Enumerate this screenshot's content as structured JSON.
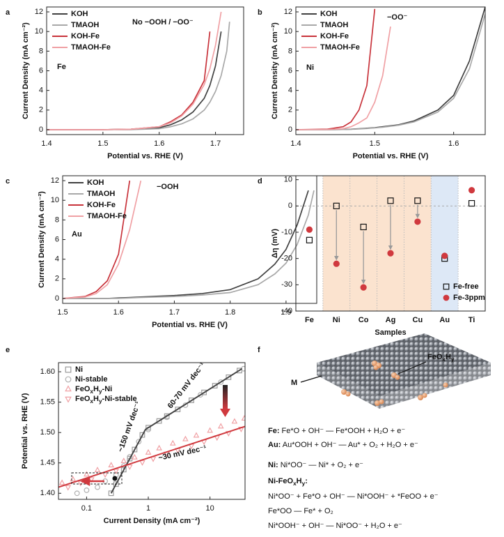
{
  "chart_data": [
    {
      "panel": "a",
      "type": "line",
      "x": [
        1.4,
        1.5,
        1.55,
        1.6,
        1.62,
        1.64,
        1.66,
        1.68,
        1.69,
        1.7,
        1.71,
        1.72,
        1.725
      ],
      "series": [
        {
          "name": "KOH",
          "color": "#404040",
          "values": [
            0,
            0,
            0.05,
            0.2,
            0.5,
            1.0,
            1.8,
            3.2,
            4.5,
            6.5,
            10,
            null,
            null
          ]
        },
        {
          "name": "TMAOH",
          "color": "#a8a8a8",
          "values": [
            0,
            0,
            0,
            0.1,
            0.3,
            0.6,
            1.1,
            2.0,
            2.8,
            3.9,
            5.5,
            8.0,
            11
          ]
        },
        {
          "name": "KOH-Fe",
          "color": "#c8323a",
          "values": [
            0,
            0,
            0.05,
            0.3,
            0.8,
            1.5,
            2.8,
            5.0,
            10.0,
            null,
            null,
            null,
            null
          ]
        },
        {
          "name": "TMAOH-Fe",
          "color": "#f0a0a4",
          "values": [
            0,
            0,
            0.05,
            0.3,
            0.7,
            1.4,
            2.6,
            4.6,
            6.2,
            8.6,
            12,
            null,
            null
          ]
        }
      ],
      "xlim": [
        1.4,
        1.75
      ],
      "ylim": [
        -0.5,
        12.5
      ],
      "xticks": [
        1.4,
        1.5,
        1.6,
        1.7
      ],
      "yticks": [
        0,
        2,
        4,
        6,
        8,
        10,
        12
      ],
      "xlabel": "Potential vs. RHE (V)",
      "ylabel": "Current Density (mA cm⁻²)",
      "legend": "upper left",
      "annotations": [
        "No −OOH / −OO⁻",
        "Fe"
      ]
    },
    {
      "panel": "b",
      "type": "line",
      "x": [
        1.4,
        1.44,
        1.46,
        1.47,
        1.48,
        1.49,
        1.5,
        1.51,
        1.52,
        1.53,
        1.55,
        1.58,
        1.6,
        1.62,
        1.64
      ],
      "series": [
        {
          "name": "KOH",
          "color": "#404040",
          "values": [
            0,
            0,
            0.02,
            0.05,
            0.1,
            0.15,
            0.2,
            0.3,
            0.4,
            0.5,
            0.9,
            2.0,
            3.5,
            7.0,
            12.5
          ]
        },
        {
          "name": "TMAOH",
          "color": "#a8a8a8",
          "values": [
            0,
            0,
            0.02,
            0.04,
            0.08,
            0.12,
            0.18,
            0.25,
            0.35,
            0.45,
            0.8,
            1.8,
            3.2,
            6.2,
            11.8
          ]
        },
        {
          "name": "KOH-Fe",
          "color": "#c8323a",
          "values": [
            0,
            0.05,
            0.3,
            0.8,
            2.0,
            4.5,
            12.3,
            null,
            null,
            null,
            null,
            null,
            null,
            null,
            null
          ]
        },
        {
          "name": "TMAOH-Fe",
          "color": "#f0a0a4",
          "values": [
            0,
            0.02,
            0.1,
            0.3,
            0.7,
            1.2,
            2.8,
            5.5,
            10.5,
            null,
            null,
            null,
            null,
            null,
            null
          ]
        }
      ],
      "xlim": [
        1.4,
        1.64
      ],
      "ylim": [
        -0.5,
        12.5
      ],
      "xticks": [
        1.4,
        1.5,
        1.6
      ],
      "yticks": [
        0,
        2,
        4,
        6,
        8,
        10,
        12
      ],
      "xlabel": "Potential vs. RHE (V)",
      "ylabel": "Current Density (mA cm⁻²)",
      "legend": "upper left",
      "annotations": [
        "−OO⁻",
        "Ni"
      ]
    },
    {
      "panel": "c",
      "type": "line",
      "x": [
        1.5,
        1.54,
        1.56,
        1.58,
        1.6,
        1.62,
        1.64,
        1.7,
        1.75,
        1.8,
        1.85,
        1.88,
        1.9,
        1.92,
        1.94,
        1.95
      ],
      "series": [
        {
          "name": "KOH",
          "color": "#404040",
          "values": [
            0,
            0,
            0,
            0,
            0.05,
            0.1,
            0.15,
            0.3,
            0.5,
            0.9,
            2.0,
            3.5,
            5.0,
            7.5,
            11.0,
            null
          ]
        },
        {
          "name": "TMAOH",
          "color": "#a8a8a8",
          "values": [
            0,
            0,
            0,
            0,
            0,
            0.05,
            0.1,
            0.2,
            0.35,
            0.6,
            1.4,
            2.5,
            3.6,
            5.5,
            8.5,
            11.0
          ]
        },
        {
          "name": "KOH-Fe",
          "color": "#c8323a",
          "values": [
            0,
            0.2,
            0.7,
            1.8,
            4.5,
            12,
            null,
            null,
            null,
            null,
            null,
            null,
            null,
            null,
            null,
            null
          ]
        },
        {
          "name": "TMAOH-Fe",
          "color": "#f0a0a4",
          "values": [
            0,
            0.15,
            0.5,
            1.4,
            3.5,
            7.0,
            12.0,
            null,
            null,
            null,
            null,
            null,
            null,
            null,
            null,
            null
          ]
        }
      ],
      "xlim": [
        1.5,
        1.955
      ],
      "ylim": [
        -0.5,
        12.5
      ],
      "xticks": [
        1.5,
        1.6,
        1.7,
        1.8,
        1.9
      ],
      "yticks": [
        0,
        2,
        4,
        6,
        8,
        10,
        12
      ],
      "xlabel": "Potential vs. RHE (V)",
      "ylabel": "Current Density (mA cm⁻²)",
      "legend": "upper left",
      "annotations": [
        "−OOH",
        "Au"
      ]
    },
    {
      "panel": "d",
      "type": "dot",
      "categories": [
        "Fe",
        "Ni",
        "Co",
        "Ag",
        "Cu",
        "Au",
        "Ti"
      ],
      "series": [
        {
          "name": "Fe-free",
          "color": "#111111",
          "marker": "square",
          "filled": false,
          "values": [
            -13,
            0,
            -8,
            2,
            2,
            -20,
            1
          ]
        },
        {
          "name": "Fe-3ppm",
          "color": "#d0393e",
          "marker": "circle",
          "filled": true,
          "values": [
            -9,
            -22,
            -31,
            -18,
            -6,
            -19,
            6
          ]
        }
      ],
      "highlights": [
        {
          "categories": [
            "Ni",
            "Co",
            "Ag",
            "Cu"
          ],
          "color": "#fbe3cf"
        },
        {
          "categories": [
            "Au"
          ],
          "color": "#dde8f6"
        }
      ],
      "ylim": [
        -40,
        11.5
      ],
      "yticks": [
        -40,
        -30,
        -20,
        -10,
        0,
        10
      ],
      "xlabel": "Samples",
      "ylabel": "Δη (mV)",
      "legend": "lower right",
      "annotations": []
    },
    {
      "panel": "e",
      "type": "scatter",
      "xscale": "log",
      "series": [
        {
          "name": "Ni",
          "color": "#9a9a9a",
          "marker": "square",
          "filled": false,
          "x": [
            0.25,
            0.3,
            0.4,
            0.5,
            0.6,
            0.8,
            1,
            1.5,
            2,
            3,
            5,
            8,
            12,
            20,
            30
          ],
          "values": [
            1.4,
            1.415,
            1.439,
            1.457,
            1.472,
            1.496,
            1.508,
            1.519,
            1.527,
            1.538,
            1.553,
            1.566,
            1.577,
            1.591,
            1.602
          ]
        },
        {
          "name": "Ni-stable",
          "color": "#b0b0b0",
          "marker": "circle",
          "filled": false,
          "x": [
            0.07,
            0.1,
            0.15,
            0.2,
            0.3,
            0.4,
            0.5,
            0.7,
            1,
            2,
            4,
            7,
            15,
            35
          ],
          "values": [
            1.4,
            1.405,
            1.41,
            1.42,
            1.43,
            1.445,
            1.46,
            1.485,
            1.505,
            1.525,
            1.545,
            1.562,
            1.583,
            1.605
          ]
        },
        {
          "name": [
            {
              "t": "FeO"
            },
            {
              "t": "x",
              "sub": true
            },
            {
              "t": "H"
            },
            {
              "t": "y",
              "sub": true
            },
            {
              "t": "-Ni"
            }
          ],
          "color": "#f0a0a4",
          "marker": "triangle-up",
          "filled": false,
          "x": [
            0.04,
            0.06,
            0.1,
            0.15,
            0.25,
            0.4,
            0.6,
            1,
            1.5,
            2.5,
            4,
            6,
            10,
            15,
            25,
            36
          ],
          "values": [
            1.417,
            1.423,
            1.431,
            1.438,
            1.446,
            1.453,
            1.459,
            1.467,
            1.474,
            1.482,
            1.489,
            1.495,
            1.503,
            1.51,
            1.518,
            1.523
          ]
        },
        {
          "name": [
            {
              "t": "FeO"
            },
            {
              "t": "x",
              "sub": true
            },
            {
              "t": "H"
            },
            {
              "t": "y",
              "sub": true
            },
            {
              "t": "-Ni-stable"
            }
          ],
          "color": "#f0a0a4",
          "marker": "triangle-down",
          "filled": false,
          "x": [
            0.05,
            0.08,
            0.12,
            0.2,
            0.3,
            0.5,
            0.8,
            1.2,
            2,
            3,
            5,
            8,
            13,
            20,
            32
          ],
          "values": [
            1.41,
            1.417,
            1.423,
            1.431,
            1.437,
            1.444,
            1.451,
            1.457,
            1.465,
            1.471,
            1.478,
            1.485,
            1.492,
            1.499,
            1.506
          ]
        }
      ],
      "fit_lines": [
        {
          "color": "#444444",
          "x": [
            0.25,
            0.9,
            33
          ],
          "values": [
            1.4,
            1.505,
            1.605
          ]
        },
        {
          "color": "#d0393e",
          "x": [
            0.035,
            37
          ],
          "values": [
            1.41,
            1.51
          ]
        }
      ],
      "xlim": [
        0.035,
        37
      ],
      "ylim": [
        1.39,
        1.615
      ],
      "xticks": [
        0.1,
        1,
        10
      ],
      "yticks": [
        {
          "value": 1.4,
          "label": "1.40"
        },
        1.45,
        {
          "value": 1.5,
          "label": "1.50"
        },
        1.55,
        {
          "value": 1.6,
          "label": "1.60"
        }
      ],
      "xlabel": "Current Density (mA cm⁻²)",
      "ylabel": "Potential vs. RHE (V)",
      "legend": "upper left",
      "annotations": [
        {
          "text": "60-70 mV dec⁻¹",
          "color": "#333333"
        },
        {
          "text": "~150 mV dec⁻¹",
          "color": "#333333"
        },
        {
          "text": "~30 mV dec⁻¹",
          "color": "#d0393e"
        }
      ]
    }
  ],
  "panel_f": {
    "panel": "f",
    "labels": {
      "m": "M",
      "feoxhy": [
        {
          "t": "FeO"
        },
        {
          "t": "x",
          "sub": true
        },
        {
          "t": "H"
        },
        {
          "t": "y",
          "sub": true
        }
      ]
    },
    "equations": [
      [
        {
          "t": "Fe:",
          "bold": true
        },
        " Fe*O + OH⁻ — Fe*OOH + H₂O + e⁻"
      ],
      [
        {
          "t": "Au:",
          "bold": true
        },
        " Au*OOH + OH⁻ — Au* + O₂ + H₂O + e⁻"
      ],
      [
        {
          "t": "Ni:",
          "bold": true
        },
        " Ni*OO⁻ — Ni* + O₂ + e⁻"
      ],
      [
        {
          "t": "Ni-FeO",
          "bold": true
        },
        {
          "t": "x",
          "sub": true,
          "bold": true
        },
        {
          "t": "H",
          "bold": true
        },
        {
          "t": "y",
          "sub": true,
          "bold": true
        },
        {
          "t": ":",
          "bold": true
        }
      ],
      [
        "Ni*OO⁻ + Fe*O + OH⁻ — Ni*OOH⁻ + *FeOO + e⁻"
      ],
      [
        "Fe*OO — Fe* + O₂"
      ],
      [
        "Ni*OOH⁻ + OH⁻ — Ni*OO⁻ + H₂O + e⁻"
      ]
    ]
  }
}
